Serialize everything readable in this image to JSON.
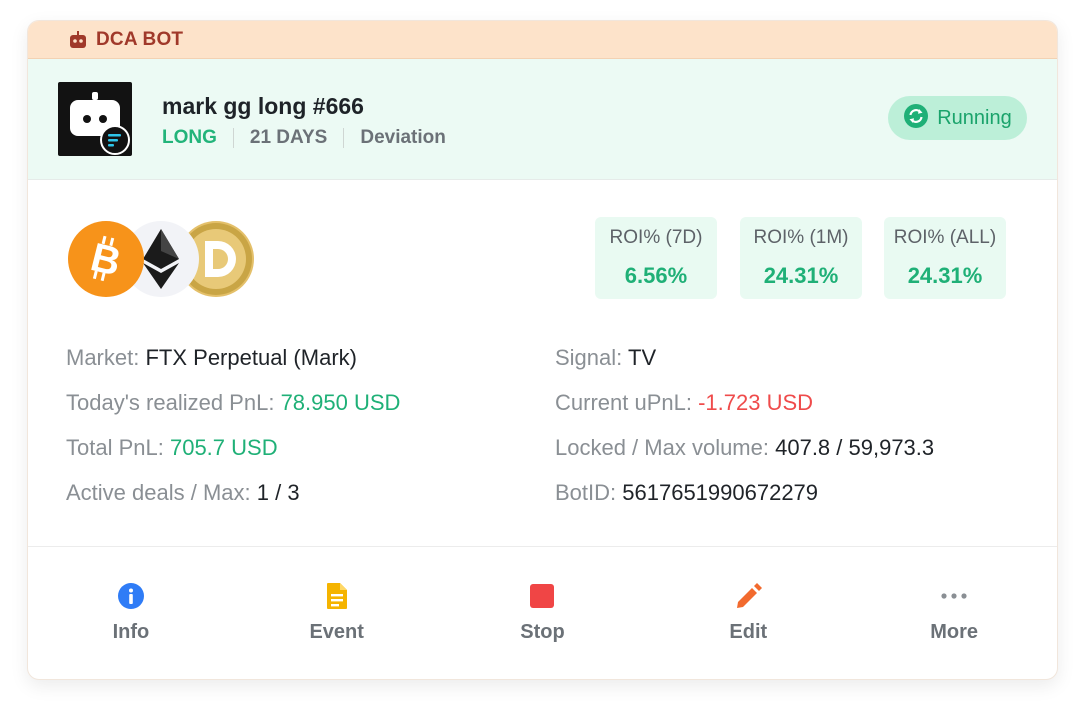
{
  "topbar": {
    "label": "DCA BOT",
    "icon": "robot-icon",
    "color": "#a0392a"
  },
  "bot": {
    "name": "mark gg long #666",
    "side": "LONG",
    "duration": "21 DAYS",
    "strategy": "Deviation",
    "status": "Running",
    "status_icon": "sync-icon"
  },
  "coins": [
    "bitcoin-icon",
    "ethereum-icon",
    "dogecoin-icon"
  ],
  "roi": [
    {
      "label": "ROI% (7D)",
      "value": "6.56%"
    },
    {
      "label": "ROI% (1M)",
      "value": "24.31%"
    },
    {
      "label": "ROI% (ALL)",
      "value": "24.31%"
    }
  ],
  "stats_left": [
    {
      "key": "Market:",
      "value": "FTX Perpetual (Mark)"
    },
    {
      "key": "Today's realized PnL:",
      "value": "78.950 USD"
    },
    {
      "key": "Total PnL:",
      "value": "705.7 USD"
    },
    {
      "key": "Active deals / Max:",
      "value": "1 / 3"
    }
  ],
  "stats_right": [
    {
      "key": "Signal:",
      "value": "TV"
    },
    {
      "key": "Current uPnL:",
      "value": "-1.723 USD"
    },
    {
      "key": "Locked / Max volume:",
      "value": "407.8 / 59,973.3"
    },
    {
      "key": "BotID:",
      "value": "5617651990672279"
    }
  ],
  "actions": [
    {
      "label": "Info",
      "icon": "info-icon",
      "color": "#2f7cf6"
    },
    {
      "label": "Event",
      "icon": "document-icon",
      "color": "#f5b400"
    },
    {
      "label": "Stop",
      "icon": "stop-icon",
      "color": "#f04545"
    },
    {
      "label": "Edit",
      "icon": "pencil-icon",
      "color": "#f26a2e"
    },
    {
      "label": "More",
      "icon": "more-dots-icon",
      "color": "#8a8f94"
    }
  ],
  "colors": {
    "positive": "#1fb077",
    "negative": "#ef4b4b",
    "header_bg": "#ecfaf4",
    "topbar_bg": "#fde3ca"
  }
}
